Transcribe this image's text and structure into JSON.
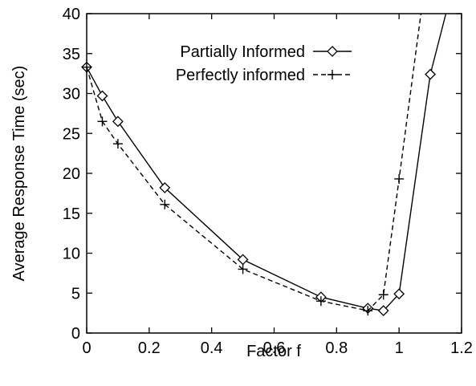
{
  "chart_data": {
    "type": "line",
    "title": "",
    "xlabel": "Factor f",
    "ylabel": "Average Response Time (sec)",
    "xlim": [
      0,
      1.2
    ],
    "ylim": [
      0,
      40
    ],
    "xticks": [
      "0",
      "0.2",
      "0.4",
      "0.6",
      "0.8",
      "1",
      "1.2"
    ],
    "yticks": [
      "0",
      "5",
      "10",
      "15",
      "20",
      "25",
      "30",
      "35",
      "40"
    ],
    "grid": false,
    "legend_position": "top-right",
    "series": [
      {
        "name": "Partially Informed",
        "marker": "diamond",
        "line": "solid",
        "color": "#000000",
        "x": [
          0,
          0.05,
          0.1,
          0.25,
          0.5,
          0.75,
          0.9,
          0.95,
          1.0,
          1.1,
          1.15
        ],
        "y": [
          33.3,
          29.7,
          26.5,
          18.2,
          9.2,
          4.5,
          3.1,
          2.8,
          4.9,
          32.4,
          40
        ]
      },
      {
        "name": "Perfectly informed",
        "marker": "plus",
        "line": "dashed",
        "color": "#000000",
        "x": [
          0,
          0.05,
          0.1,
          0.25,
          0.5,
          0.75,
          0.9,
          0.95,
          1.0,
          1.07
        ],
        "y": [
          33.3,
          26.5,
          23.7,
          16.1,
          8.0,
          4.0,
          2.8,
          4.8,
          19.3,
          40
        ]
      }
    ]
  }
}
